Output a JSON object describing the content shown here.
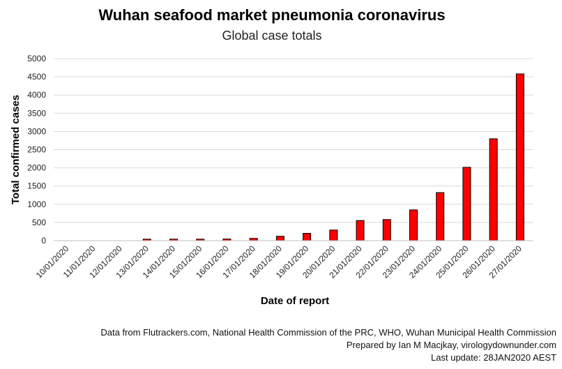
{
  "chart_data": {
    "type": "bar",
    "title": "Wuhan seafood market pneumonia coronavirus",
    "subtitle": "Global case totals",
    "xlabel": "Date of report",
    "ylabel": "Total confirmed cases",
    "ylim": [
      0,
      5000
    ],
    "yticks": [
      0,
      500,
      1000,
      1500,
      2000,
      2500,
      3000,
      3500,
      4000,
      4500,
      5000
    ],
    "grid": true,
    "bar_color": "#ff0000",
    "categories": [
      "10/01/2020",
      "11/01/2020",
      "12/01/2020",
      "13/01/2020",
      "14/01/2020",
      "15/01/2020",
      "16/01/2020",
      "17/01/2020",
      "18/01/2020",
      "19/01/2020",
      "20/01/2020",
      "21/01/2020",
      "22/01/2020",
      "23/01/2020",
      "24/01/2020",
      "25/01/2020",
      "26/01/2020",
      "27/01/2020"
    ],
    "values": [
      0,
      0,
      0,
      41,
      41,
      41,
      45,
      62,
      121,
      201,
      291,
      554,
      580,
      845,
      1320,
      2014,
      2798,
      4579
    ]
  },
  "footer": {
    "line1": "Data from Flutrackers.com, National Health Commission of the PRC, WHO, Wuhan Municipal Health Commission",
    "line2": "Prepared by Ian M Macjkay, virologydownunder.com",
    "line3": "Last update: 28JAN2020 AEST"
  }
}
